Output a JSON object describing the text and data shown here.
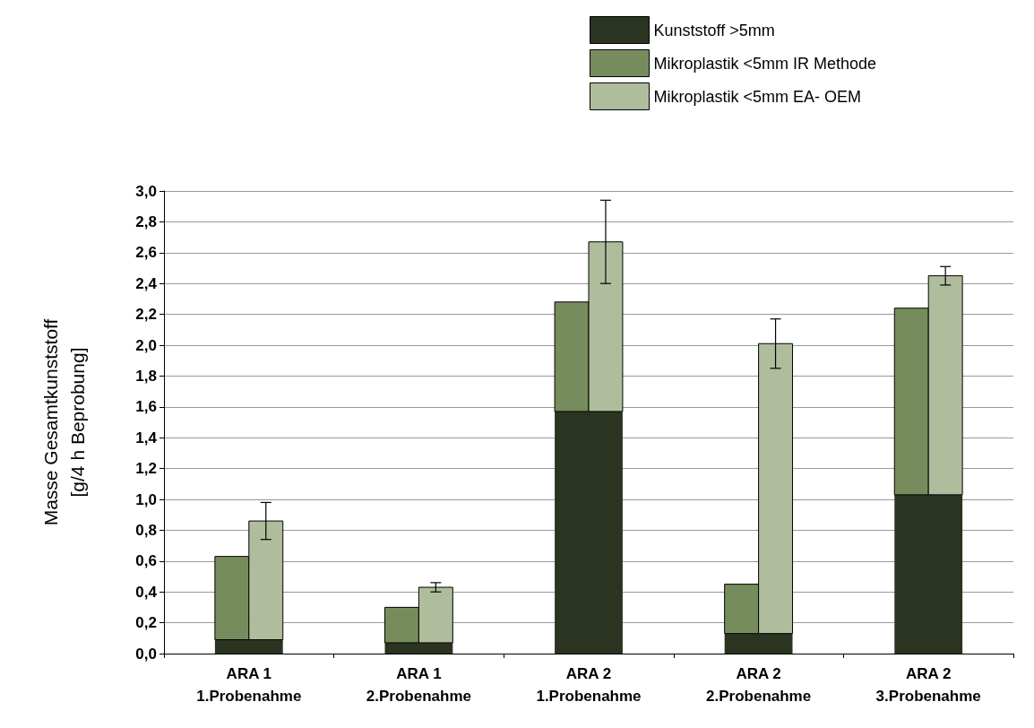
{
  "chart_data": {
    "type": "bar",
    "ylabel": "Masse Gesamtkunststoff\n[g/4 h Beprobung]",
    "categories": [
      "ARA 1\n1.Probenahme",
      "ARA 1\n2.Probenahme",
      "ARA 2\n1.Probenahme",
      "ARA 2\n2.Probenahme",
      "ARA 2\n3.Probenahme"
    ],
    "series": [
      {
        "name": "Kunststoff >5mm",
        "color": "#2b3321",
        "values": [
          0.09,
          0.07,
          1.57,
          0.13,
          1.03
        ]
      },
      {
        "name": "Mikroplastik <5mm IR Methode",
        "color": "#778c5c",
        "values": [
          0.54,
          0.23,
          0.71,
          0.32,
          1.21
        ],
        "base": [
          0.09,
          0.07,
          1.57,
          0.13,
          1.03
        ]
      },
      {
        "name": "Mikroplastik <5mm EA- OEM",
        "color": "#afbd9c",
        "values": [
          0.77,
          0.36,
          1.1,
          1.88,
          1.42
        ],
        "base": [
          0.09,
          0.07,
          1.57,
          0.13,
          1.03
        ],
        "errors": [
          0.12,
          0.03,
          0.27,
          0.16,
          0.06
        ]
      }
    ],
    "ylim": [
      0,
      3
    ],
    "yticks": [
      {
        "value": 0,
        "label": "0,0"
      },
      {
        "value": 0.2,
        "label": "0,2"
      },
      {
        "value": 0.4,
        "label": "0,4"
      },
      {
        "value": 0.6,
        "label": "0,6"
      },
      {
        "value": 0.8,
        "label": "0,8"
      },
      {
        "value": 1,
        "label": "1,0"
      },
      {
        "value": 1.2,
        "label": "1,2"
      },
      {
        "value": 1.4,
        "label": "1,4"
      },
      {
        "value": 1.6,
        "label": "1,6"
      },
      {
        "value": 1.8,
        "label": "1,8"
      },
      {
        "value": 2,
        "label": "2,0"
      },
      {
        "value": 2.2,
        "label": "2,2"
      },
      {
        "value": 2.4,
        "label": "2,4"
      },
      {
        "value": 2.6,
        "label": "2,6"
      },
      {
        "value": 2.8,
        "label": "2,8"
      },
      {
        "value": 3,
        "label": "3,0"
      }
    ],
    "grid": "y",
    "legend": "top right"
  }
}
